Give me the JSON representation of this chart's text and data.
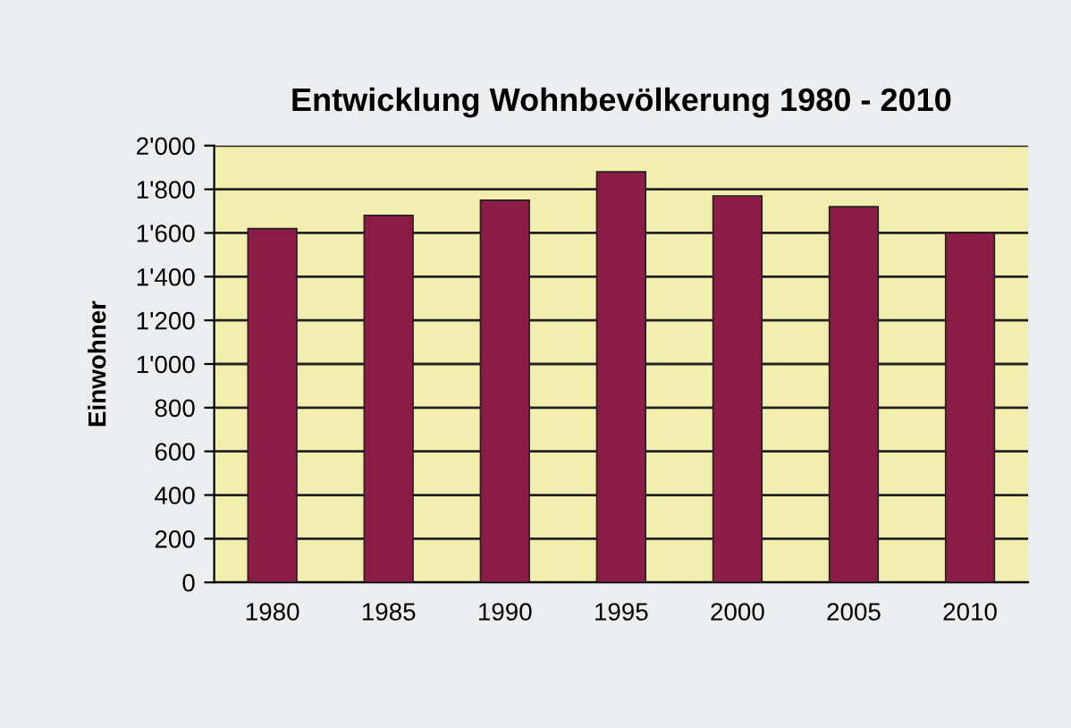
{
  "chart_data": {
    "type": "bar",
    "title": "Entwicklung Wohnbevölkerung 1980 - 2010",
    "ylabel": "Einwohner",
    "categories": [
      "1980",
      "1985",
      "1990",
      "1995",
      "2000",
      "2005",
      "2010"
    ],
    "values": [
      1620,
      1680,
      1750,
      1880,
      1770,
      1720,
      1600
    ],
    "color": "#8a1c45",
    "ylim": [
      0,
      2000
    ],
    "yticks": [
      0,
      200,
      400,
      600,
      800,
      {
        "value": 1000,
        "label": "1'000"
      },
      {
        "value": 1200,
        "label": "1'200"
      },
      {
        "value": 1400,
        "label": "1'400"
      },
      {
        "value": 1600,
        "label": "1'600"
      },
      {
        "value": 1800,
        "label": "1'800"
      },
      {
        "value": 2000,
        "label": "2'000"
      }
    ],
    "grid": "y",
    "legend": false
  }
}
